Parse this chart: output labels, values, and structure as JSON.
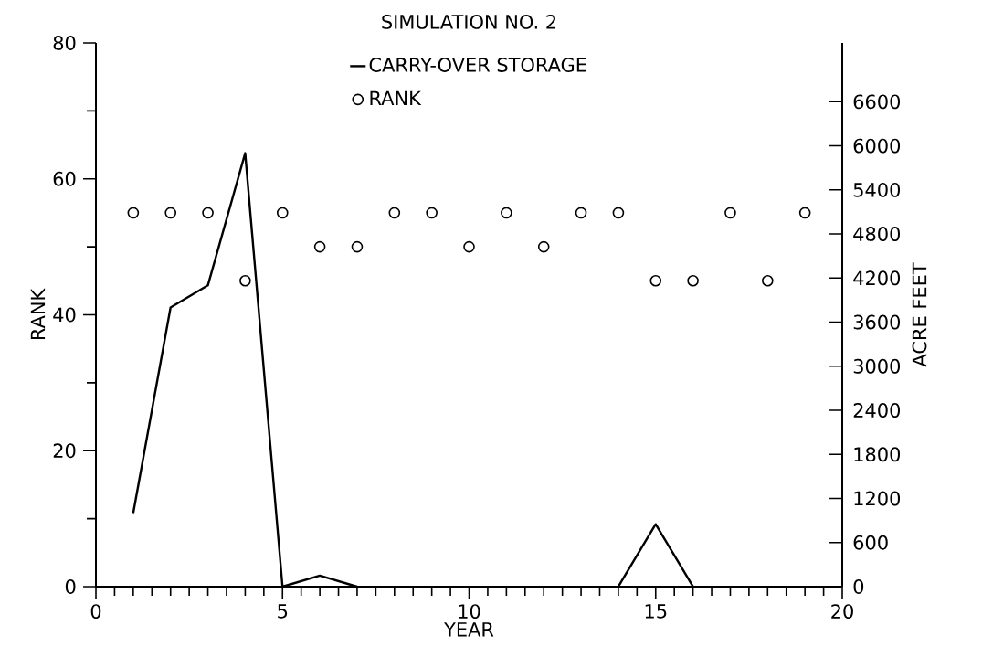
{
  "chart_data": {
    "type": "line",
    "title": "SIMULATION NO. 2",
    "xlabel": "YEAR",
    "ylabel": "RANK",
    "y2label": "ACRE FEET",
    "x": [
      1,
      2,
      3,
      4,
      5,
      6,
      7,
      8,
      9,
      10,
      11,
      12,
      13,
      14,
      15,
      16,
      17,
      18,
      19
    ],
    "series": [
      {
        "name": "CARRY-OVER STORAGE",
        "axis": "y2",
        "color": "#000000",
        "line_style": "solid",
        "values": [
          1000,
          3800,
          4100,
          5900,
          0,
          150,
          0,
          null,
          null,
          null,
          null,
          null,
          null,
          0,
          850,
          0,
          null,
          null,
          null
        ]
      },
      {
        "name": "RANK",
        "type": "scatter",
        "axis": "y",
        "color": "#000000",
        "marker": "circle",
        "values": [
          55,
          55,
          55,
          45,
          55,
          50,
          50,
          55,
          55,
          50,
          55,
          50,
          55,
          55,
          45,
          45,
          55,
          45,
          55
        ]
      }
    ],
    "xlim": [
      0,
      20
    ],
    "xticks": [
      0,
      5,
      10,
      15,
      20
    ],
    "ylim": [
      0,
      80
    ],
    "yticks": [
      0,
      20,
      40,
      60,
      80
    ],
    "y2lim": [
      0,
      7400
    ],
    "y2ticks": [
      0,
      600,
      1200,
      1800,
      2400,
      3000,
      3600,
      4200,
      4800,
      5400,
      6000,
      6600
    ],
    "grid": false,
    "legend": "top"
  }
}
